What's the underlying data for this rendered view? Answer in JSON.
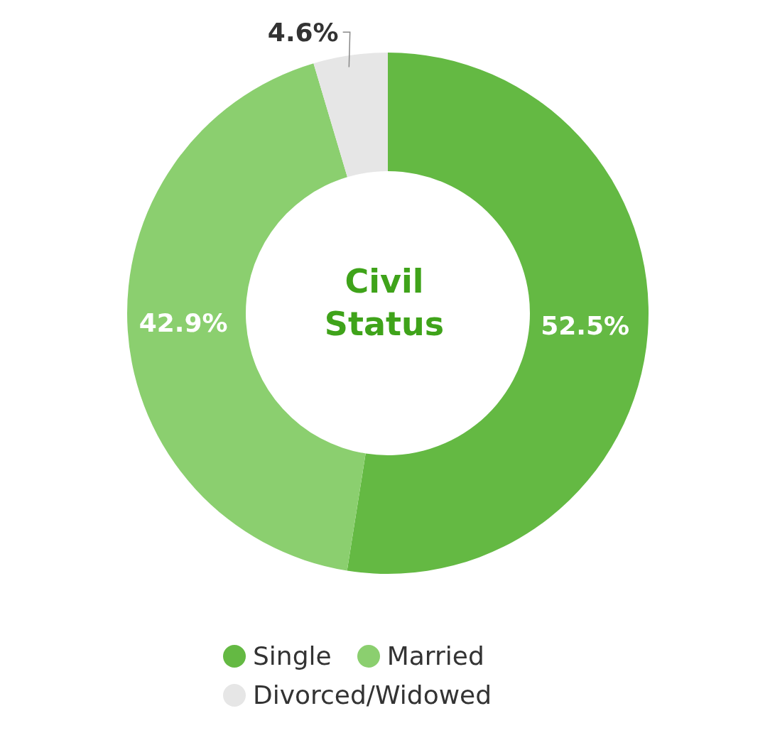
{
  "chart_data": {
    "type": "donut",
    "title": "Civil Status",
    "categories": [
      "Single",
      "Married",
      "Divorced/Widowed"
    ],
    "values": [
      52.5,
      42.9,
      4.6
    ],
    "colors": [
      "#64b943",
      "#8bcf6f",
      "#e6e6e6"
    ],
    "value_labels": [
      "52.5%",
      "42.9%",
      "4.6%"
    ],
    "legend": "bottom"
  }
}
